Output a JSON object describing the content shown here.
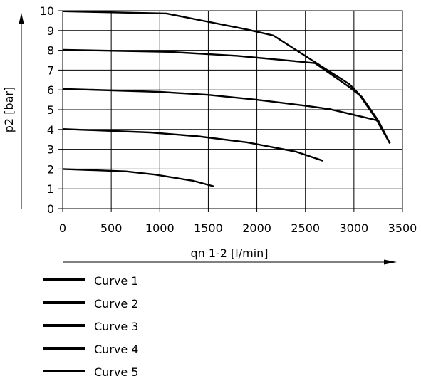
{
  "chart_data": {
    "type": "line",
    "title": "",
    "xlabel": "qn 1-2 [l/min]",
    "ylabel": "p2 [bar]",
    "xlim": [
      0,
      3500
    ],
    "ylim": [
      0,
      10
    ],
    "x_ticks": [
      0,
      500,
      1000,
      1500,
      2000,
      2500,
      3000,
      3500
    ],
    "y_ticks": [
      0,
      1,
      2,
      3,
      4,
      5,
      6,
      7,
      8,
      9,
      10
    ],
    "grid": true,
    "legend_position": "bottom-left",
    "series": [
      {
        "name": "Curve 1",
        "points": [
          [
            0,
            2.0
          ],
          [
            650,
            1.88
          ],
          [
            950,
            1.72
          ],
          [
            1350,
            1.4
          ],
          [
            1560,
            1.12
          ]
        ]
      },
      {
        "name": "Curve 2",
        "points": [
          [
            0,
            4.02
          ],
          [
            900,
            3.85
          ],
          [
            1400,
            3.65
          ],
          [
            1900,
            3.35
          ],
          [
            2400,
            2.88
          ],
          [
            2680,
            2.42
          ]
        ]
      },
      {
        "name": "Curve 3",
        "points": [
          [
            0,
            6.05
          ],
          [
            1000,
            5.9
          ],
          [
            1500,
            5.75
          ],
          [
            2000,
            5.5
          ],
          [
            2500,
            5.2
          ],
          [
            2750,
            5.03
          ],
          [
            3250,
            4.45
          ],
          [
            3370,
            3.3
          ]
        ]
      },
      {
        "name": "Curve 4",
        "points": [
          [
            0,
            8.02
          ],
          [
            1100,
            7.92
          ],
          [
            1800,
            7.72
          ],
          [
            2350,
            7.47
          ],
          [
            2600,
            7.35
          ],
          [
            2950,
            6.15
          ],
          [
            3080,
            5.65
          ],
          [
            3250,
            4.45
          ],
          [
            3370,
            3.3
          ]
        ]
      },
      {
        "name": "Curve 5",
        "points": [
          [
            0,
            9.97
          ],
          [
            1070,
            9.86
          ],
          [
            1900,
            9.05
          ],
          [
            2170,
            8.75
          ],
          [
            2950,
            6.3
          ],
          [
            3050,
            5.8
          ],
          [
            3220,
            4.6
          ],
          [
            3370,
            3.3
          ]
        ]
      }
    ],
    "line_color": "#000000"
  }
}
